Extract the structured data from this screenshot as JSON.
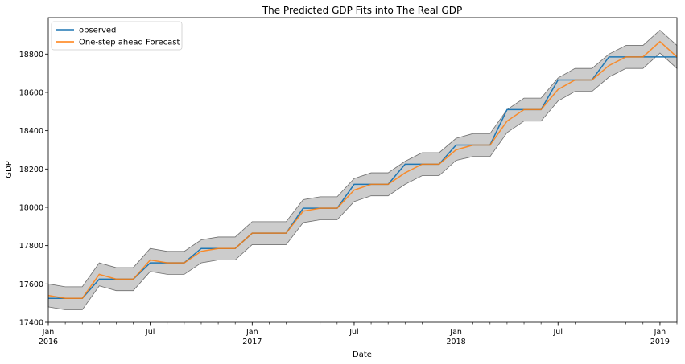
{
  "chart_data": {
    "type": "line",
    "title": "The Predicted GDP Fits into The Real GDP",
    "xlabel": "Date",
    "ylabel": "GDP",
    "xlim": [
      "2016-01-01",
      "2019-02-01"
    ],
    "ylim": [
      17400,
      18990
    ],
    "grid": false,
    "legend_position": "top-left",
    "y_ticks": [
      "17400",
      "17600",
      "17800",
      "18000",
      "18200",
      "18400",
      "18600",
      "18800"
    ],
    "x_ticks": [
      {
        "label": "Jan",
        "sublabel": "2016",
        "date": "2016-01-01"
      },
      {
        "label": "Jul",
        "sublabel": "",
        "date": "2016-07-01"
      },
      {
        "label": "Jan",
        "sublabel": "2017",
        "date": "2017-01-01"
      },
      {
        "label": "Jul",
        "sublabel": "",
        "date": "2017-07-01"
      },
      {
        "label": "Jan",
        "sublabel": "2018",
        "date": "2018-01-01"
      },
      {
        "label": "Jul",
        "sublabel": "",
        "date": "2018-07-01"
      },
      {
        "label": "Jan",
        "sublabel": "2019",
        "date": "2019-01-01"
      }
    ],
    "x": [
      "2016-01-01",
      "2016-02-01",
      "2016-03-01",
      "2016-04-01",
      "2016-05-01",
      "2016-06-01",
      "2016-07-01",
      "2016-08-01",
      "2016-09-01",
      "2016-10-01",
      "2016-11-01",
      "2016-12-01",
      "2017-01-01",
      "2017-02-01",
      "2017-03-01",
      "2017-04-01",
      "2017-05-01",
      "2017-06-01",
      "2017-07-01",
      "2017-08-01",
      "2017-09-01",
      "2017-10-01",
      "2017-11-01",
      "2017-12-01",
      "2018-01-01",
      "2018-02-01",
      "2018-03-01",
      "2018-04-01",
      "2018-05-01",
      "2018-06-01",
      "2018-07-01",
      "2018-08-01",
      "2018-09-01",
      "2018-10-01",
      "2018-11-01",
      "2018-12-01",
      "2019-01-01",
      "2019-02-01"
    ],
    "series": [
      {
        "name": "observed",
        "color": "#1f77b4",
        "values": [
          17525,
          17525,
          17525,
          17625,
          17625,
          17625,
          17710,
          17710,
          17710,
          17785,
          17785,
          17785,
          17865,
          17865,
          17865,
          17995,
          17995,
          17995,
          18120,
          18120,
          18120,
          18225,
          18225,
          18225,
          18325,
          18325,
          18325,
          18510,
          18510,
          18510,
          18665,
          18665,
          18665,
          18785,
          18785,
          18785,
          18785,
          18785
        ]
      },
      {
        "name": "One-step ahead Forecast",
        "color": "#ff7f0e",
        "values": [
          17540,
          17525,
          17525,
          17650,
          17625,
          17625,
          17725,
          17710,
          17710,
          17770,
          17785,
          17785,
          17865,
          17865,
          17865,
          17980,
          17995,
          17995,
          18090,
          18120,
          18120,
          18180,
          18225,
          18225,
          18300,
          18325,
          18325,
          18450,
          18510,
          18510,
          18615,
          18665,
          18665,
          18740,
          18785,
          18785,
          18865,
          18785
        ]
      }
    ],
    "confidence_interval": {
      "color": "#7f7f7f",
      "lower": [
        17480,
        17465,
        17465,
        17590,
        17565,
        17565,
        17665,
        17650,
        17650,
        17710,
        17725,
        17725,
        17805,
        17805,
        17805,
        17920,
        17935,
        17935,
        18030,
        18060,
        18060,
        18120,
        18165,
        18165,
        18245,
        18265,
        18265,
        18390,
        18450,
        18450,
        18555,
        18605,
        18605,
        18680,
        18725,
        18725,
        18805,
        18725
      ],
      "upper": [
        17600,
        17585,
        17585,
        17710,
        17685,
        17685,
        17785,
        17770,
        17770,
        17830,
        17845,
        17845,
        17925,
        17925,
        17925,
        18040,
        18055,
        18055,
        18150,
        18180,
        18180,
        18240,
        18285,
        18285,
        18360,
        18385,
        18385,
        18510,
        18570,
        18570,
        18675,
        18725,
        18725,
        18800,
        18845,
        18845,
        18925,
        18845
      ]
    }
  }
}
